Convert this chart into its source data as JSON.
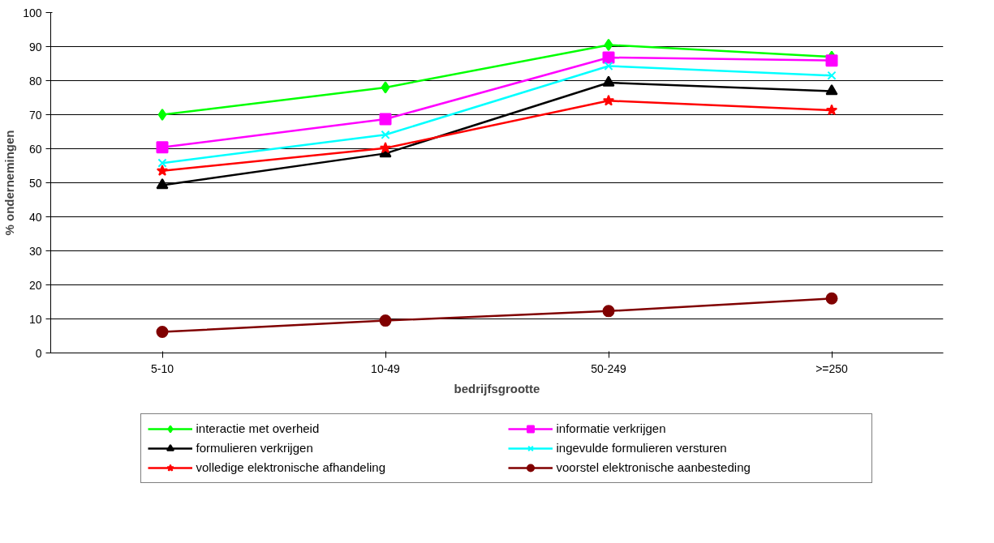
{
  "chart_data": {
    "type": "line",
    "xlabel": "bedrijfsgrootte",
    "ylabel": "% ondernemingen",
    "categories": [
      "5-10",
      "10-49",
      "50-249",
      ">=250"
    ],
    "ylim": [
      0,
      100
    ],
    "yticks": [
      0,
      10,
      20,
      30,
      40,
      50,
      60,
      70,
      80,
      90,
      100
    ],
    "grid": "y",
    "legend": "bottom",
    "line_style": "solid",
    "series": [
      {
        "name": "interactie met overheid",
        "color": "#00ff00",
        "marker": "diamond",
        "values": [
          70,
          78,
          90.5,
          87
        ]
      },
      {
        "name": "informatie verkrijgen",
        "color": "#ff00ff",
        "marker": "square",
        "values": [
          60.4,
          68.7,
          86.8,
          85.9
        ]
      },
      {
        "name": "formulieren verkrijgen",
        "color": "#000000",
        "marker": "triangle",
        "values": [
          49.3,
          58.6,
          79.4,
          76.9
        ]
      },
      {
        "name": "ingevulde formulieren versturen",
        "color": "#00ffff",
        "marker": "cross",
        "values": [
          55.8,
          64.1,
          84.3,
          81.5
        ]
      },
      {
        "name": "volledige elektronische afhandeling",
        "color": "#ff0000",
        "marker": "star",
        "values": [
          53.5,
          60.2,
          74.1,
          71.3
        ]
      },
      {
        "name": "voorstel elektronische aanbesteding",
        "color": "#800000",
        "marker": "circle",
        "values": [
          6.2,
          9.5,
          12.3,
          16
        ]
      }
    ]
  }
}
